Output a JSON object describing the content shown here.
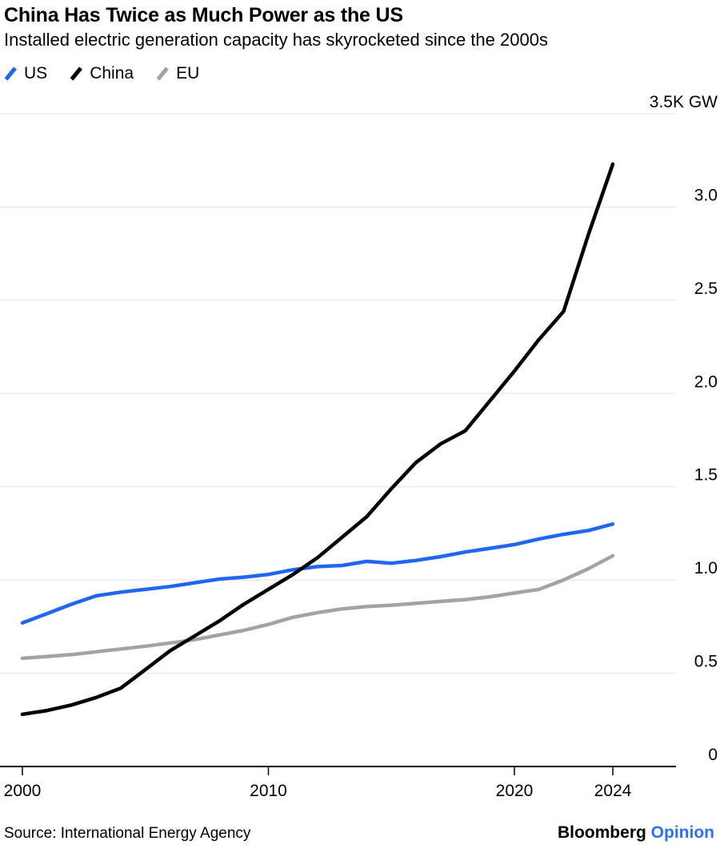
{
  "header": {
    "title": "China Has Twice as Much Power as the US",
    "subtitle": "Installed electric generation capacity has skyrocketed since the 2000s"
  },
  "footer": {
    "source": "Source: International Energy Agency",
    "brand": "Bloomberg",
    "brand_suffix": "Opinion"
  },
  "colors": {
    "us_blue": "#2066f2",
    "china_black": "#000000",
    "eu_gray": "#a3a3a3",
    "opinion_blue": "#2f6ff2",
    "gridline": "#e7e7e7",
    "axis": "#000000"
  },
  "chart_data": {
    "type": "line",
    "title": "China Has Twice as Much Power as the US",
    "subtitle": "Installed electric generation capacity has skyrocketed since the 2000s",
    "unit": "GW",
    "legend_position": "top-left",
    "grid": true,
    "x": [
      2000,
      2001,
      2002,
      2003,
      2004,
      2005,
      2006,
      2007,
      2008,
      2009,
      2010,
      2011,
      2012,
      2013,
      2014,
      2015,
      2016,
      2017,
      2018,
      2019,
      2020,
      2021,
      2022,
      2023,
      2024
    ],
    "series": [
      {
        "name": "US",
        "color": "#2066f2",
        "values": [
          770,
          820,
          870,
          915,
          935,
          950,
          965,
          985,
          1005,
          1015,
          1030,
          1055,
          1072,
          1078,
          1100,
          1090,
          1105,
          1125,
          1150,
          1170,
          1190,
          1220,
          1245,
          1265,
          1300
        ]
      },
      {
        "name": "China",
        "color": "#000000",
        "values": [
          280,
          300,
          330,
          370,
          420,
          520,
          620,
          700,
          780,
          870,
          950,
          1030,
          1120,
          1230,
          1340,
          1490,
          1630,
          1730,
          1800,
          1960,
          2120,
          2290,
          2440,
          2850,
          3230
        ]
      },
      {
        "name": "EU",
        "color": "#a3a3a3",
        "values": [
          580,
          590,
          600,
          615,
          630,
          645,
          662,
          680,
          705,
          730,
          762,
          800,
          825,
          845,
          858,
          865,
          875,
          885,
          895,
          910,
          930,
          950,
          1000,
          1060,
          1130
        ]
      }
    ],
    "y_axis": {
      "min": 0,
      "max": 3500,
      "ticks": [
        {
          "value": 0,
          "label": "0"
        },
        {
          "value": 500,
          "label": "0.5"
        },
        {
          "value": 1000,
          "label": "1.0"
        },
        {
          "value": 1500,
          "label": "1.5"
        },
        {
          "value": 2000,
          "label": "2.0"
        },
        {
          "value": 2500,
          "label": "2.5"
        },
        {
          "value": 3000,
          "label": "3.0"
        },
        {
          "value": 3500,
          "label": "3.5K GW"
        }
      ]
    },
    "x_axis": {
      "range": [
        2000,
        2026.6
      ],
      "ticks": [
        {
          "value": 2000,
          "label": "2000"
        },
        {
          "value": 2010,
          "label": "2010"
        },
        {
          "value": 2020,
          "label": "2020"
        },
        {
          "value": 2024,
          "label": "2024"
        }
      ]
    }
  }
}
